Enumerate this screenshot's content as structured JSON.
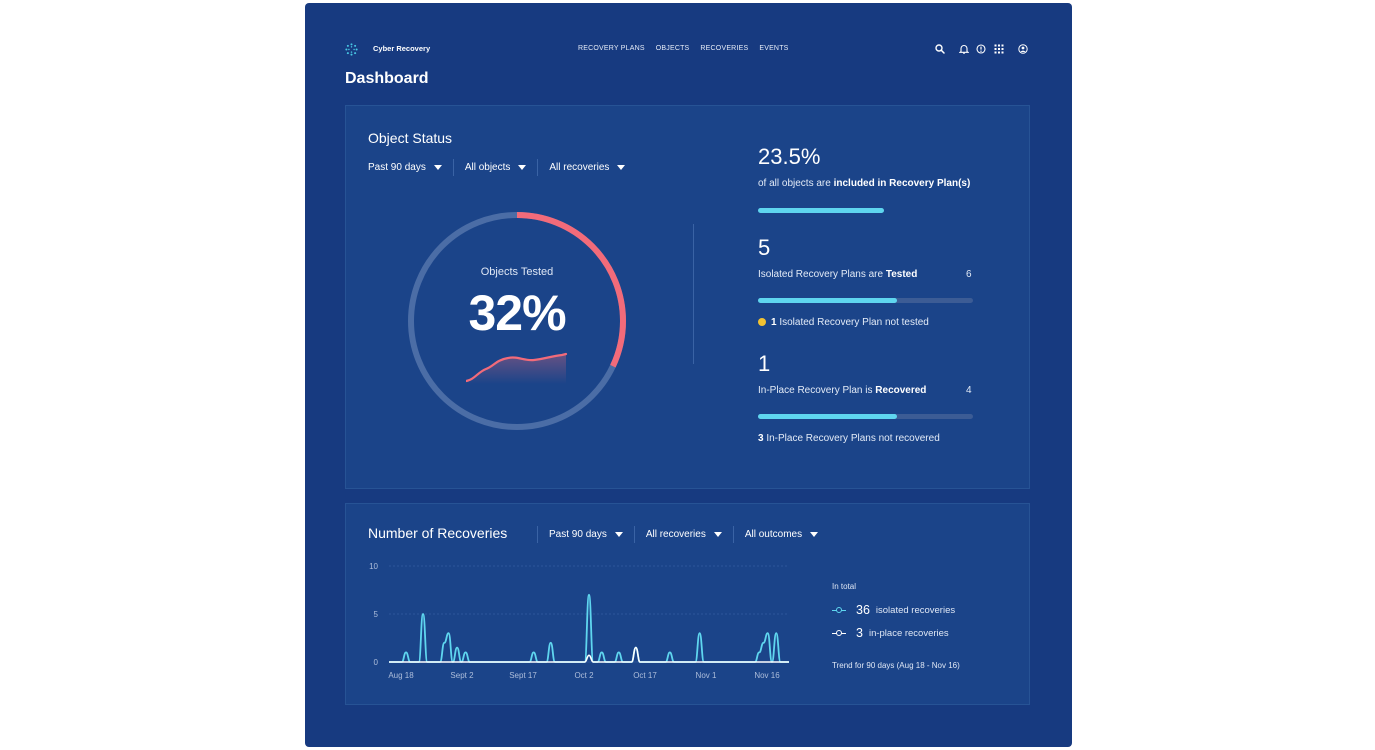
{
  "app": {
    "brand": "Cyber Recovery"
  },
  "nav": [
    "RECOVERY PLANS",
    "OBJECTS",
    "RECOVERIES",
    "EVENTS"
  ],
  "icons": [
    "search-icon",
    "bell-icon",
    "help-icon",
    "apps-grid-icon",
    "user-icon"
  ],
  "page": {
    "title": "Dashboard"
  },
  "object_status": {
    "title": "Object Status",
    "filters": [
      "Past 90 days",
      "All objects",
      "All recoveries"
    ],
    "donut": {
      "label": "Objects Tested",
      "value_text": "32%",
      "fraction": 0.32
    },
    "stats": [
      {
        "big": "23.5%",
        "text": "of all objects are ",
        "bold": "included in Recovery Plan(s)",
        "total": "",
        "fraction": 0.585,
        "note_bold": "",
        "note": ""
      },
      {
        "big": "5",
        "text": "Isolated Recovery Plans are ",
        "bold": "Tested",
        "total": "6",
        "fraction": 0.645,
        "note_bold": "1",
        "note": " Isolated Recovery Plan not tested"
      },
      {
        "big": "1",
        "text": "In-Place Recovery Plan is ",
        "bold": "Recovered",
        "total": "4",
        "fraction": 0.645,
        "note_bold": "3",
        "note": " In-Place Recovery Plans not recovered"
      }
    ]
  },
  "recoveries": {
    "title": "Number of Recoveries",
    "filters": [
      "Past 90 days",
      "All recoveries",
      "All outcomes"
    ],
    "legend": {
      "title": "In total",
      "items": [
        {
          "count": "36",
          "label": "isolated recoveries",
          "color": "#5fd6ef"
        },
        {
          "count": "3",
          "label": "in-place recoveries",
          "color": "#ffffff"
        }
      ],
      "trend": "Trend for 90 days (Aug 18 - Nov 16)"
    }
  },
  "chart_data": {
    "type": "line",
    "x_ticks": [
      "Aug 18",
      "Sept 2",
      "Sept 17",
      "Oct 2",
      "Oct 17",
      "Nov 1",
      "Nov 16"
    ],
    "ylim": [
      0,
      10
    ],
    "y_ticks": [
      "0",
      "5",
      "10"
    ],
    "series": [
      {
        "name": "isolated recoveries",
        "color": "#5fd6ef",
        "values": [
          0,
          0,
          0,
          0,
          1,
          0,
          0,
          0,
          5,
          0,
          0,
          0,
          0,
          2,
          3,
          0,
          1.5,
          0,
          1,
          0,
          0,
          0,
          0,
          0,
          0,
          0,
          0,
          0,
          0,
          0,
          0,
          0,
          0,
          0,
          1,
          0,
          0,
          0,
          2,
          0,
          0,
          0,
          0,
          0,
          0,
          0,
          0,
          7,
          0,
          0,
          1,
          0,
          0,
          0,
          1,
          0,
          0,
          0,
          1.5,
          0,
          0,
          0,
          0,
          0,
          0,
          0,
          1,
          0,
          0,
          0,
          0,
          0,
          0,
          3,
          0,
          0,
          0,
          0,
          0,
          0,
          0,
          0,
          0,
          0,
          0,
          0,
          0,
          1,
          2,
          3,
          0,
          3,
          0,
          0,
          0
        ]
      },
      {
        "name": "in-place recoveries",
        "color": "#ffffff",
        "values": [
          0,
          0,
          0,
          0,
          0,
          0,
          0,
          0,
          0,
          0,
          0,
          0,
          0,
          0,
          0,
          0,
          0,
          0,
          0,
          0,
          0,
          0,
          0,
          0,
          0,
          0,
          0,
          0,
          0,
          0,
          0,
          0,
          0,
          0,
          0,
          0,
          0,
          0,
          0,
          0,
          0,
          0,
          0,
          0,
          0,
          0,
          0,
          0.7,
          0,
          0,
          0,
          0,
          0,
          0,
          0,
          0,
          0,
          0,
          1.5,
          0,
          0,
          0,
          0,
          0,
          0,
          0,
          0,
          0,
          0,
          0,
          0,
          0,
          0,
          0,
          0,
          0,
          0,
          0,
          0,
          0,
          0,
          0,
          0,
          0,
          0,
          0,
          0,
          0,
          0,
          0,
          0,
          0,
          0,
          0,
          0
        ]
      }
    ]
  }
}
